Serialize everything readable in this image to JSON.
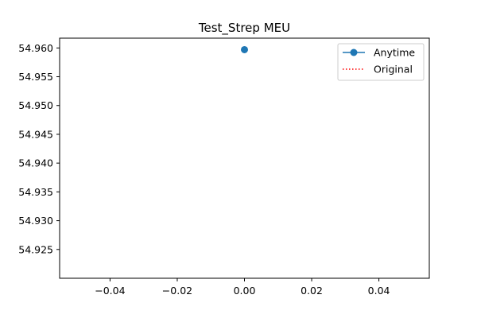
{
  "chart_data": {
    "type": "line",
    "title": "Test_Strep MEU",
    "xlabel": "",
    "ylabel": "",
    "xlim": [
      -0.055,
      0.055
    ],
    "ylim": [
      54.92,
      54.9617
    ],
    "x_ticks": [
      -0.04,
      -0.02,
      0.0,
      0.02,
      0.04
    ],
    "x_tick_labels": [
      "−0.04",
      "−0.02",
      "0.00",
      "0.02",
      "0.04"
    ],
    "y_ticks": [
      54.925,
      54.93,
      54.935,
      54.94,
      54.945,
      54.95,
      54.955,
      54.96
    ],
    "y_tick_labels": [
      "54.925",
      "54.930",
      "54.935",
      "54.940",
      "54.945",
      "54.950",
      "54.955",
      "54.960"
    ],
    "grid": false,
    "legend_position": "top-right",
    "series": [
      {
        "name": "Anytime",
        "color": "#1f77b4",
        "style": "solid",
        "marker": "circle",
        "x": [
          0.0
        ],
        "y": [
          54.9597
        ]
      },
      {
        "name": "Original",
        "color": "#ff0000",
        "style": "dotted",
        "marker": "none",
        "x": [],
        "y": []
      }
    ]
  }
}
